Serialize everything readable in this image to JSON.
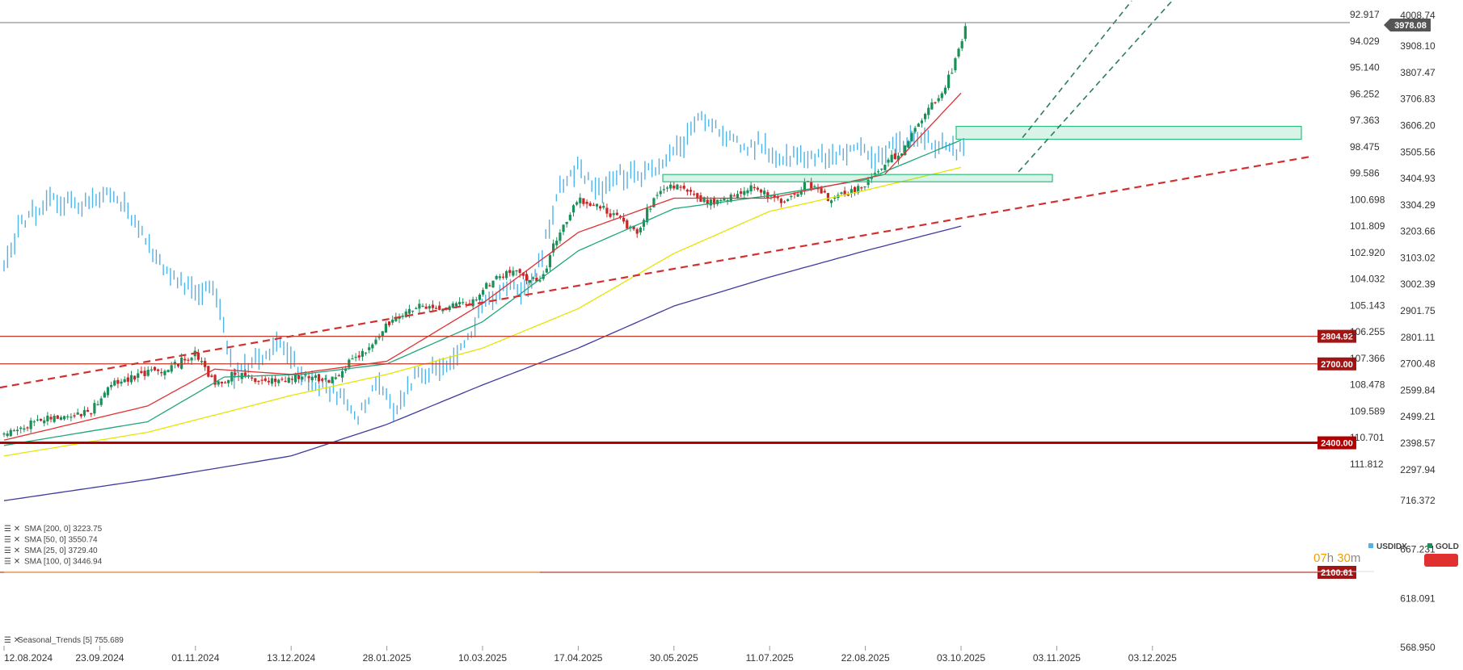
{
  "chart_data": {
    "type": "candlestick",
    "series_labels": {
      "primary": "GOLD",
      "secondary": "USDIDX"
    },
    "current_price": "3978.08",
    "top_label": "4008.74",
    "countdown": {
      "hours": "07",
      "hours_unit": "h",
      "minutes": "30",
      "minutes_unit": "m"
    },
    "x_tick_labels": [
      "12.08.2024",
      "23.09.2024",
      "01.11.2024",
      "13.12.2024",
      "28.01.2025",
      "10.03.2025",
      "17.04.2025",
      "30.05.2025",
      "11.07.2025",
      "22.08.2025",
      "03.10.2025",
      "03.11.2025",
      "03.12.2025"
    ],
    "y_left_labels": [
      "92.917",
      "94.029",
      "95.140",
      "96.252",
      "97.363",
      "98.475",
      "99.586",
      "100.698",
      "101.809",
      "102.920",
      "104.032",
      "105.143",
      "106.255",
      "107.366",
      "108.478",
      "109.589",
      "110.701",
      "111.812"
    ],
    "y_right_labels": [
      "3908.10",
      "3807.47",
      "3706.83",
      "3606.20",
      "3505.56",
      "3404.93",
      "3304.29",
      "3203.66",
      "3103.02",
      "3002.39",
      "2901.75",
      "2801.11",
      "2700.48",
      "2599.84",
      "2499.21",
      "2398.57",
      "2297.94"
    ],
    "horizontal_levels": [
      {
        "label": "2804.92",
        "value": 2804.92,
        "color": "#c0392b",
        "weight": "thin"
      },
      {
        "label": "2700.00",
        "value": 2700.0,
        "color": "#c0392b",
        "weight": "thin"
      },
      {
        "label": "2400.00",
        "value": 2400.0,
        "color": "#b20000",
        "weight": "thick"
      },
      {
        "label": "2100.61",
        "value": 2100.61,
        "color": "#c0392b",
        "weight": "thin"
      }
    ],
    "moving_averages": [
      {
        "name": "SMA [200, 0]",
        "value": "3223.75",
        "color": "#3f3a9e"
      },
      {
        "name": "SMA [50, 0]",
        "value": "3550.74",
        "color": "#e5e500"
      },
      {
        "name": "SMA [25, 0]",
        "value": "3729.40",
        "color": "#1fa67a"
      },
      {
        "name": "SMA [100, 0]",
        "value": "3446.94",
        "color": "#e03030"
      }
    ],
    "indicator": {
      "name": "Seasonal_Trends [5]",
      "value": "755.689",
      "y_labels": [
        "716.372",
        "667.231",
        "618.091",
        "568.950"
      ]
    },
    "colors": {
      "up_candle": "#1a8f5a",
      "down_candle": "#c62828",
      "usdidx": "#4fb3e8",
      "trendline": "#d32f2f",
      "channel": "#2e7d5a",
      "zone": "#2bbf7f",
      "seasonal": "#f0a050"
    }
  },
  "legend": {
    "usdidx": "USDIDX",
    "gold": "GOLD"
  }
}
